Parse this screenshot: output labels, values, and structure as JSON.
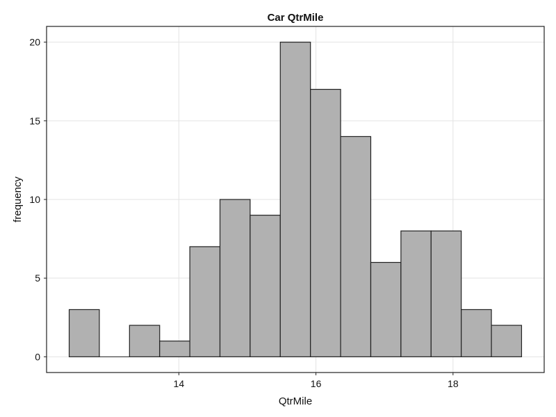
{
  "chart_data": {
    "type": "bar",
    "title": "Car QtrMile",
    "xlabel": "QtrMile",
    "ylabel": "frequency",
    "bin_edges": [
      12.4,
      12.84,
      13.28,
      13.72,
      14.16,
      14.6,
      15.04,
      15.48,
      15.92,
      16.36,
      16.8,
      17.24,
      17.68,
      18.12,
      18.56,
      19.0
    ],
    "values": [
      3,
      0,
      2,
      1,
      7,
      10,
      9,
      20,
      17,
      14,
      6,
      8,
      8,
      3,
      2
    ],
    "xlim": [
      12.07,
      19.33
    ],
    "ylim": [
      -1.0,
      21.0
    ],
    "xticks": [
      14,
      16,
      18
    ],
    "xtick_labels": [
      "14",
      "16",
      "18"
    ],
    "yticks": [
      0,
      5,
      10,
      15,
      20
    ],
    "ytick_labels": [
      "0",
      "5",
      "10",
      "15",
      "20"
    ],
    "grid": true,
    "bar_color": "#b1b1b1",
    "edge_color": "#222222"
  }
}
